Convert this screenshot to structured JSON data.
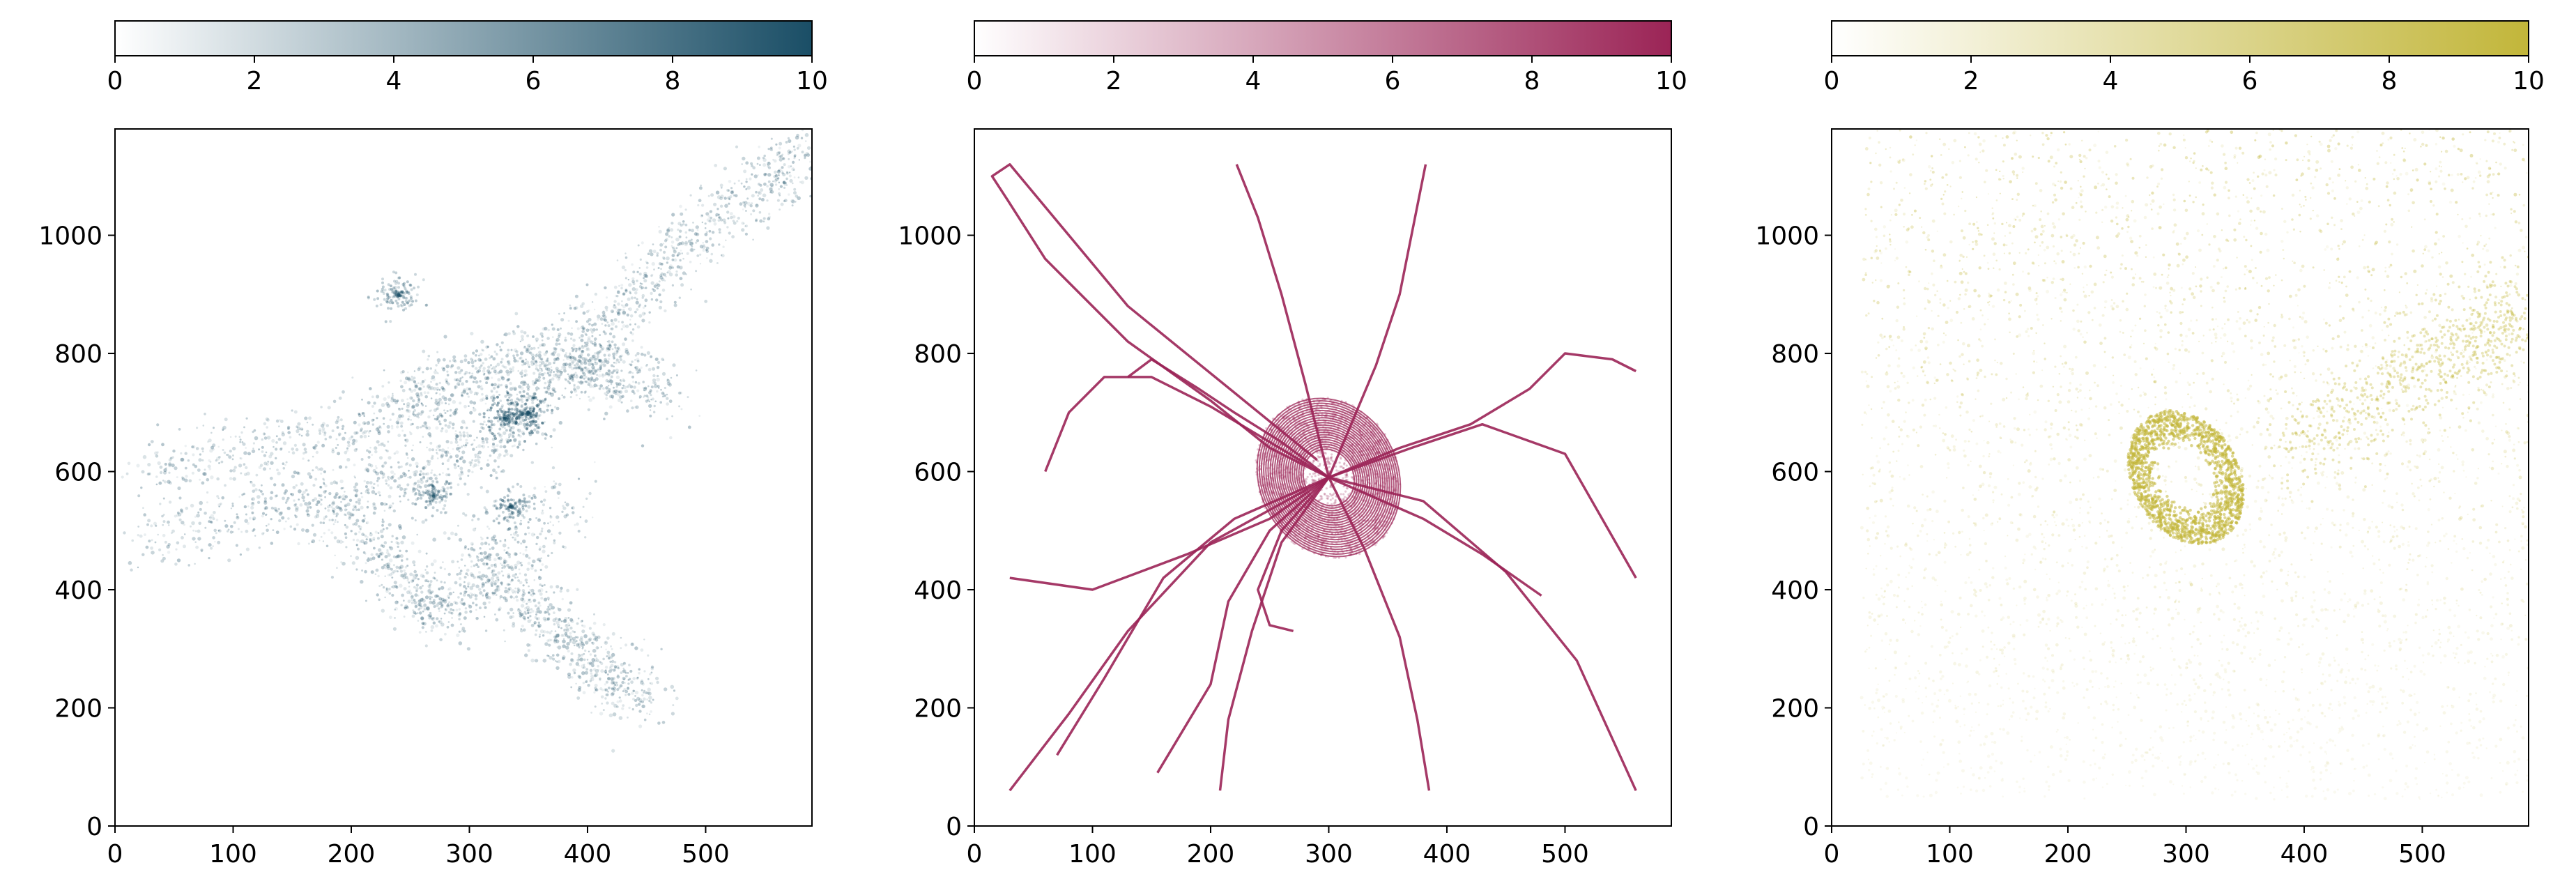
{
  "chart_data": [
    {
      "type": "heatmap",
      "title": "",
      "xlabel": "",
      "ylabel": "",
      "xlim": [
        0,
        590
      ],
      "ylim": [
        0,
        1180
      ],
      "xticks": [
        0,
        100,
        200,
        300,
        400,
        500
      ],
      "yticks": [
        0,
        200,
        400,
        600,
        800,
        1000
      ],
      "grid": false,
      "colorbar": {
        "orientation": "horizontal",
        "placement": "top",
        "range": [
          0,
          10
        ],
        "ticks": [
          0,
          2,
          4,
          6,
          8,
          10
        ],
        "color_low": "#ffffff",
        "color_high": "#1a4e66"
      },
      "structures": [
        {
          "x": [
            15,
            120,
            210,
            300,
            380,
            430
          ],
          "y": [
            600,
            640,
            670,
            710,
            780,
            790
          ]
        },
        {
          "x": [
            20,
            110,
            200,
            260,
            310,
            360
          ],
          "y": [
            480,
            530,
            560,
            600,
            640,
            700
          ]
        },
        {
          "x": [
            170,
            220,
            250,
            280,
            320,
            390
          ],
          "y": [
            560,
            470,
            400,
            360,
            420,
            560
          ]
        },
        {
          "x": [
            230,
            290,
            340,
            380,
            420,
            470
          ],
          "y": [
            710,
            760,
            790,
            780,
            760,
            740
          ]
        },
        {
          "x": [
            300,
            330,
            360,
            390,
            420,
            450
          ],
          "y": [
            480,
            420,
            360,
            300,
            250,
            210
          ]
        },
        {
          "x": [
            380,
            430,
            470,
            520,
            560,
            590
          ],
          "y": [
            800,
            880,
            960,
            1040,
            1100,
            1140
          ]
        }
      ],
      "hotspots": [
        {
          "x": 350,
          "y": 700,
          "w": 1.0
        },
        {
          "x": 330,
          "y": 690,
          "w": 0.9
        },
        {
          "x": 335,
          "y": 540,
          "w": 0.6
        },
        {
          "x": 240,
          "y": 900,
          "w": 0.5
        },
        {
          "x": 270,
          "y": 560,
          "w": 0.45
        }
      ]
    },
    {
      "type": "heatmap",
      "title": "",
      "xlabel": "",
      "ylabel": "",
      "xlim": [
        0,
        590
      ],
      "ylim": [
        0,
        1180
      ],
      "xticks": [
        0,
        100,
        200,
        300,
        400,
        500
      ],
      "yticks": [
        0,
        200,
        400,
        600,
        800,
        1000
      ],
      "grid": false,
      "colorbar": {
        "orientation": "horizontal",
        "placement": "top",
        "range": [
          0,
          10
        ],
        "ticks": [
          0,
          2,
          4,
          6,
          8,
          10
        ],
        "color_low": "#ffffff",
        "color_high": "#9b2456"
      },
      "vortex": {
        "center": [
          300,
          590
        ],
        "radius_x": 60,
        "radius_y": 140,
        "tilt_deg": 25
      },
      "trajectories": [
        {
          "x": [
            300,
            250,
            200,
            130,
            60,
            28,
            15,
            30,
            130,
            290
          ],
          "y": [
            590,
            640,
            720,
            820,
            960,
            1060,
            1100,
            1120,
            880,
            620
          ]
        },
        {
          "x": [
            300,
            260,
            220,
            190,
            150,
            130
          ],
          "y": [
            590,
            650,
            700,
            740,
            790,
            760
          ]
        },
        {
          "x": [
            300,
            280,
            260,
            240,
            222
          ],
          "y": [
            590,
            750,
            900,
            1030,
            1120
          ]
        },
        {
          "x": [
            300,
            340,
            360,
            375,
            382
          ],
          "y": [
            590,
            780,
            900,
            1050,
            1120
          ]
        },
        {
          "x": [
            300,
            360,
            420,
            470,
            500,
            540,
            560
          ],
          "y": [
            590,
            640,
            680,
            740,
            800,
            790,
            770
          ]
        },
        {
          "x": [
            300,
            370,
            430,
            500,
            560
          ],
          "y": [
            590,
            640,
            680,
            630,
            420
          ]
        },
        {
          "x": [
            300,
            250,
            180,
            100,
            30
          ],
          "y": [
            590,
            520,
            460,
            400,
            420
          ]
        },
        {
          "x": [
            300,
            200,
            130,
            80,
            30
          ],
          "y": [
            590,
            480,
            330,
            190,
            60
          ]
        },
        {
          "x": [
            300,
            260,
            235,
            215,
            208
          ],
          "y": [
            590,
            480,
            330,
            180,
            60
          ]
        },
        {
          "x": [
            300,
            330,
            360,
            375,
            385
          ],
          "y": [
            590,
            470,
            320,
            180,
            60
          ]
        },
        {
          "x": [
            300,
            380,
            450,
            510,
            560
          ],
          "y": [
            590,
            550,
            430,
            280,
            60
          ]
        },
        {
          "x": [
            300,
            380,
            430,
            480
          ],
          "y": [
            590,
            520,
            460,
            390
          ]
        },
        {
          "x": [
            300,
            220,
            160,
            110,
            70
          ],
          "y": [
            590,
            520,
            420,
            250,
            120
          ]
        },
        {
          "x": [
            300,
            250,
            215,
            200,
            155
          ],
          "y": [
            590,
            500,
            380,
            240,
            90
          ]
        },
        {
          "x": [
            300,
            260,
            240,
            250,
            270
          ],
          "y": [
            590,
            500,
            400,
            340,
            330
          ]
        },
        {
          "x": [
            300,
            200,
            150,
            110,
            80,
            60
          ],
          "y": [
            590,
            710,
            760,
            760,
            700,
            600
          ]
        }
      ]
    },
    {
      "type": "heatmap",
      "title": "",
      "xlabel": "",
      "ylabel": "",
      "xlim": [
        0,
        590
      ],
      "ylim": [
        0,
        1180
      ],
      "xticks": [
        0,
        100,
        200,
        300,
        400,
        500
      ],
      "yticks": [
        0,
        200,
        400,
        600,
        800,
        1000
      ],
      "grid": false,
      "colorbar": {
        "orientation": "horizontal",
        "placement": "top",
        "range": [
          0,
          10
        ],
        "ticks": [
          0,
          2,
          4,
          6,
          8,
          10
        ],
        "color_low": "#ffffff",
        "color_high": "#c2b63a"
      },
      "fill_region": {
        "x": [
          25,
          590
        ],
        "y": [
          45,
          1180
        ]
      },
      "ring": {
        "center": [
          300,
          590
        ],
        "radius_x": 45,
        "radius_y": 120,
        "tilt_deg": 30
      },
      "band": {
        "x": [
          380,
          470,
          540,
          590
        ],
        "y": [
          640,
          730,
          820,
          880
        ]
      }
    }
  ]
}
